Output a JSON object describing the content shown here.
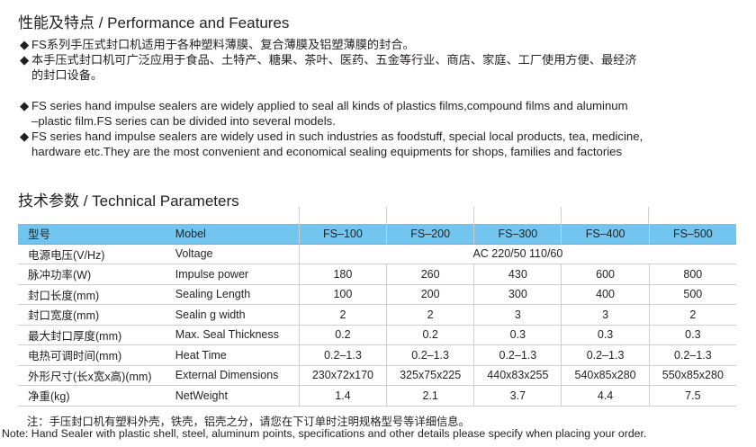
{
  "features": {
    "title": "性能及特点 / Performance and Features",
    "bullet": "◆",
    "cn": [
      "FS系列手压式封口机适用于各种塑料薄膜、复合薄膜及铝塑薄膜的封合。",
      "本手压式封口机可广泛应用于食品、土特产、糖果、茶叶、医药、五金等行业、商店、家庭、工厂使用方便、最经济",
      "的封口设备。"
    ],
    "en": [
      "FS series hand impulse sealers are widely applied to seal all kinds of plastics films,compound films and aluminum",
      "–plastic film.FS series can be divided into several models.",
      "FS series hand impulse sealers are widely used in such industries as foodstuff, special local products, tea, medicine,",
      "hardware etc.They are the most convenient and economical sealing equipments for shops, families and factories"
    ]
  },
  "params": {
    "title": "技术参数 / Technical Parameters",
    "header": [
      "型号",
      "Mobel",
      "FS–100",
      "FS–200",
      "FS–300",
      "FS–400",
      "FS–500"
    ],
    "voltage": [
      "电源电压(V/Hz)",
      "Voltage",
      "AC 220/50  110/60"
    ],
    "rows": [
      [
        "脉冲功率(W)",
        "Impulse power",
        "180",
        "260",
        "430",
        "600",
        "800"
      ],
      [
        "封口长度(mm)",
        "Sealing Length",
        "100",
        "200",
        "300",
        "400",
        "500"
      ],
      [
        "封口宽度(mm)",
        "Sealin g width",
        "2",
        "2",
        "3",
        "3",
        "2"
      ],
      [
        "最大封口厚度(mm)",
        "Max. Seal Thickness",
        "0.2",
        "0.2",
        "0.3",
        "0.3",
        "0.3"
      ],
      [
        "电热可调时间(mm)",
        "Heat Time",
        "0.2–1.3",
        "0.2–1.3",
        "0.2–1.3",
        "0.2–1.3",
        "0.2–1.3"
      ],
      [
        "外形尺寸(长x宽x高)(mm)",
        "External Dimensions",
        "230x72x170",
        "325x75x225",
        "440x83x255",
        "540x85x280",
        "550x85x280"
      ],
      [
        "净重(kg)",
        "NetWeight",
        "1.4",
        "2.1",
        "3.7",
        "4.4",
        "7.5"
      ]
    ]
  },
  "notes": {
    "cn": "注：手压封口机有塑料外壳，铁壳，铝壳之分，请您在下订单时注明规格型号等详细信息。",
    "en": "Note: Hand Sealer with plastic shell, steel, aluminum points, specifications and other details please specify when placing your order."
  },
  "colors": {
    "header_row": "#72c5ee"
  }
}
